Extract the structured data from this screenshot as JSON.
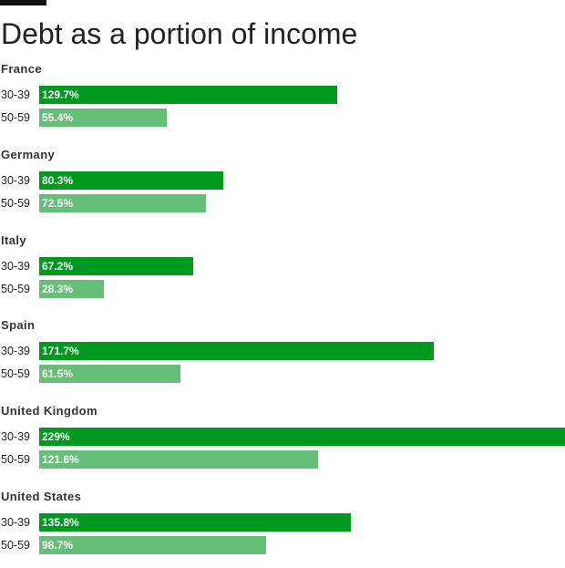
{
  "chart_data": {
    "type": "bar",
    "orientation": "horizontal",
    "title": "Debt as a portion of income",
    "series": [
      {
        "label": "30-39",
        "color": "#00991f"
      },
      {
        "label": "50-59",
        "color": "#66bf79"
      }
    ],
    "groups": [
      {
        "name": "France",
        "bars": [
          {
            "label": "30-39",
            "value": 129.7,
            "display": "129.7%"
          },
          {
            "label": "50-59",
            "value": 55.4,
            "display": "55.4%"
          }
        ]
      },
      {
        "name": "Germany",
        "bars": [
          {
            "label": "30-39",
            "value": 80.3,
            "display": "80.3%"
          },
          {
            "label": "50-59",
            "value": 72.5,
            "display": "72.5%"
          }
        ]
      },
      {
        "name": "Italy",
        "bars": [
          {
            "label": "30-39",
            "value": 67.2,
            "display": "67.2%"
          },
          {
            "label": "50-59",
            "value": 28.3,
            "display": "28.3%"
          }
        ]
      },
      {
        "name": "Spain",
        "bars": [
          {
            "label": "30-39",
            "value": 171.7,
            "display": "171.7%"
          },
          {
            "label": "50-59",
            "value": 61.5,
            "display": "61.5%"
          }
        ]
      },
      {
        "name": "United Kingdom",
        "bars": [
          {
            "label": "30-39",
            "value": 229,
            "display": "229%"
          },
          {
            "label": "50-59",
            "value": 121.6,
            "display": "121.6%"
          }
        ]
      },
      {
        "name": "United States",
        "bars": [
          {
            "label": "30-39",
            "value": 135.8,
            "display": "135.8%"
          },
          {
            "label": "50-59",
            "value": 98.7,
            "display": "98.7%"
          }
        ]
      }
    ],
    "xlim": [
      0,
      229
    ],
    "grid": false,
    "legend": "none"
  }
}
